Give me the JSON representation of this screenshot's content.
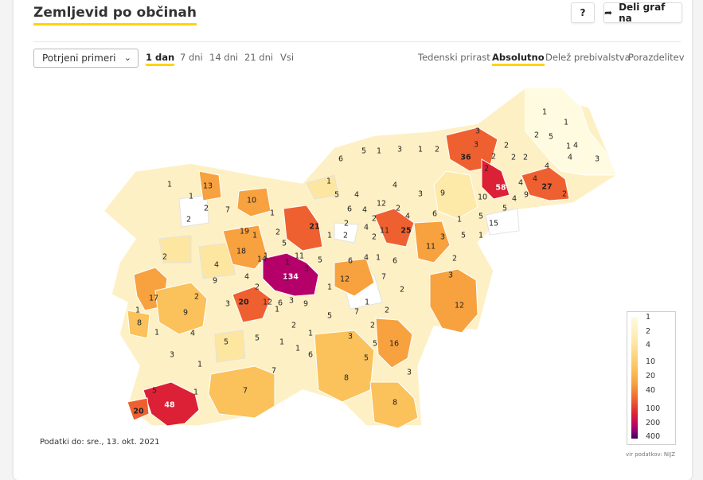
{
  "header": {
    "title": "Zemljevid po občinah",
    "help_label": "?",
    "share_label": "Deli graf na"
  },
  "controls": {
    "metric_select": "Potrjeni primeri",
    "time_ranges": [
      "1 dan",
      "7 dni",
      "14 dni",
      "21 dni",
      "Vsi"
    ],
    "time_range_selected": "1 dan",
    "modes": [
      "Tedenski prirast",
      "Absolutno",
      "Delež prebivalstva",
      "Porazdelitev"
    ],
    "mode_selected": "Absolutno"
  },
  "map": {
    "municipality_values": [
      {
        "label": "1"
      },
      {
        "label": "1"
      },
      {
        "label": "2"
      },
      {
        "label": "5"
      },
      {
        "label": "3"
      },
      {
        "label": "1"
      },
      {
        "label": "3"
      },
      {
        "label": "4"
      },
      {
        "label": "2"
      },
      {
        "label": "3"
      },
      {
        "label": "36"
      },
      {
        "label": "5"
      },
      {
        "label": "3"
      },
      {
        "label": "1"
      },
      {
        "label": "2"
      },
      {
        "label": "2"
      },
      {
        "label": "2"
      },
      {
        "label": "2"
      },
      {
        "label": "6"
      },
      {
        "label": "1"
      },
      {
        "label": "4"
      },
      {
        "label": "4"
      },
      {
        "label": "2"
      },
      {
        "label": "13"
      },
      {
        "label": "1"
      },
      {
        "label": "1"
      },
      {
        "label": "10"
      },
      {
        "label": "2"
      },
      {
        "label": "7"
      },
      {
        "label": "2"
      },
      {
        "label": "3"
      },
      {
        "label": "9"
      },
      {
        "label": "10"
      },
      {
        "label": "58"
      },
      {
        "label": "4"
      },
      {
        "label": "4"
      },
      {
        "label": "27"
      },
      {
        "label": "2"
      },
      {
        "label": "9"
      },
      {
        "label": "4"
      },
      {
        "label": "4"
      },
      {
        "label": "6"
      },
      {
        "label": "4"
      },
      {
        "label": "12"
      },
      {
        "label": "1"
      },
      {
        "label": "4"
      },
      {
        "label": "5"
      },
      {
        "label": "6"
      },
      {
        "label": "2"
      },
      {
        "label": "5"
      },
      {
        "label": "1"
      },
      {
        "label": "5"
      },
      {
        "label": "2"
      },
      {
        "label": "19"
      },
      {
        "label": "1"
      },
      {
        "label": "2"
      },
      {
        "label": "21"
      },
      {
        "label": "2"
      },
      {
        "label": "4"
      },
      {
        "label": "11"
      },
      {
        "label": "25"
      },
      {
        "label": "4"
      },
      {
        "label": "15"
      },
      {
        "label": "1"
      },
      {
        "label": "2"
      },
      {
        "label": "1"
      },
      {
        "label": "2"
      },
      {
        "label": "3"
      },
      {
        "label": "5"
      },
      {
        "label": "1"
      },
      {
        "label": "11"
      },
      {
        "label": "2"
      },
      {
        "label": "1"
      },
      {
        "label": "5"
      },
      {
        "label": "18"
      },
      {
        "label": "11"
      },
      {
        "label": "4"
      },
      {
        "label": "14"
      },
      {
        "label": "1"
      },
      {
        "label": "5"
      },
      {
        "label": "6"
      },
      {
        "label": "4"
      },
      {
        "label": "1"
      },
      {
        "label": "6"
      },
      {
        "label": "2"
      },
      {
        "label": "3"
      },
      {
        "label": "9"
      },
      {
        "label": "4"
      },
      {
        "label": "134"
      },
      {
        "label": "3"
      },
      {
        "label": "12"
      },
      {
        "label": "1"
      },
      {
        "label": "7"
      },
      {
        "label": "2"
      },
      {
        "label": "3"
      },
      {
        "label": "17"
      },
      {
        "label": "2"
      },
      {
        "label": "3"
      },
      {
        "label": "20"
      },
      {
        "label": "12"
      },
      {
        "label": "6"
      },
      {
        "label": "3"
      },
      {
        "label": "1"
      },
      {
        "label": "9"
      },
      {
        "label": "12"
      },
      {
        "label": "1"
      },
      {
        "label": "9"
      },
      {
        "label": "2"
      },
      {
        "label": "8"
      },
      {
        "label": "1"
      },
      {
        "label": "4"
      },
      {
        "label": "2"
      },
      {
        "label": "5"
      },
      {
        "label": "7"
      },
      {
        "label": "2"
      },
      {
        "label": "1"
      },
      {
        "label": "5"
      },
      {
        "label": "2"
      },
      {
        "label": "1"
      },
      {
        "label": "3"
      },
      {
        "label": "5"
      },
      {
        "label": "1"
      },
      {
        "label": "1"
      },
      {
        "label": "6"
      },
      {
        "label": "3"
      },
      {
        "label": "5"
      },
      {
        "label": "16"
      },
      {
        "label": "1"
      },
      {
        "label": "7"
      },
      {
        "label": "5"
      },
      {
        "label": "3"
      },
      {
        "label": "8"
      },
      {
        "label": "5"
      },
      {
        "label": "7"
      },
      {
        "label": "1"
      },
      {
        "label": "48"
      },
      {
        "label": "20"
      },
      {
        "label": "8"
      }
    ]
  },
  "legend": {
    "ticks": [
      "1",
      "2",
      "4",
      "10",
      "20",
      "40",
      "100",
      "200",
      "400"
    ],
    "scale": "log",
    "colors": [
      "#fffbe0",
      "#fde9a8",
      "#fbc15a",
      "#f7a13f",
      "#ef6030",
      "#dc2035",
      "#b5006a",
      "#6d006f",
      "#3b0060"
    ],
    "source": "vir podatkov: NIJZ"
  },
  "footer": {
    "updated": "Podatki do: sre., 13. okt. 2021"
  }
}
